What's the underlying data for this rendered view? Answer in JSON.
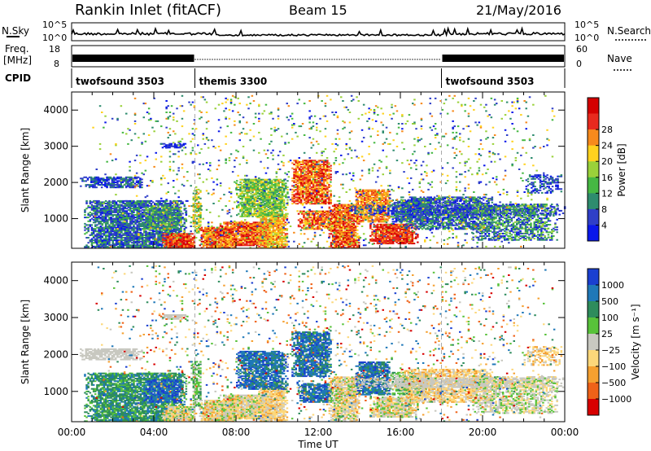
{
  "header": {
    "station": "Rankin Inlet (fitACF)",
    "beam": "Beam 15",
    "date": "21/May/2016"
  },
  "strip_labels": {
    "nsky": "N.Sky",
    "nsearch": "N.Search",
    "freq_top": "Freq.",
    "freq_unit": "[MHz]",
    "nave": "Nave",
    "cpid": "CPID",
    "nsky_ticks": [
      "10^5",
      "10^0"
    ],
    "nsearch_ticks": [
      "10^5",
      "10^0"
    ],
    "freq_ticks": [
      "18",
      "8"
    ],
    "nave_ticks": [
      "60",
      "0"
    ]
  },
  "chart_data": {
    "type": "heatmap",
    "x_unit": "Time UT",
    "xlim": [
      "00:00",
      "24:00"
    ],
    "x_tick_labels": [
      "00:00",
      "04:00",
      "08:00",
      "12:00",
      "16:00",
      "20:00",
      "00:00"
    ],
    "cpid_segments": [
      {
        "name": "twofsound 3503",
        "start_hour": 0,
        "end_hour": 6
      },
      {
        "name": "themis 3300",
        "start_hour": 6,
        "end_hour": 18
      },
      {
        "name": "twofsound 3503",
        "start_hour": 18,
        "end_hour": 24
      }
    ],
    "freq_hours_high": [
      [
        0,
        6
      ],
      [
        18,
        24
      ]
    ],
    "panels": [
      {
        "id": "power",
        "ylabel": "Slant Range [km]",
        "ylim": [
          180,
          4500
        ],
        "y_ticks": [
          "1000",
          "2000",
          "3000",
          "4000"
        ],
        "colorbar_label": "Power [dB]",
        "colorbar_ticks": [
          "4",
          "8",
          "12",
          "16",
          "20",
          "24",
          "28"
        ],
        "colors": [
          "#0a18ea",
          "#2f3fc8",
          "#2e8c6e",
          "#46b843",
          "#9ad13a",
          "#ffd21e",
          "#f78a1c",
          "#e82a1e",
          "#d40000"
        ]
      },
      {
        "id": "velocity",
        "ylabel": "Slant Range [km]",
        "ylim": [
          180,
          4500
        ],
        "y_ticks": [
          "1000",
          "2000",
          "3000",
          "4000"
        ],
        "colorbar_label": "Velocity [m s⁻¹]",
        "colorbar_ticks": [
          "1000",
          "500",
          "100",
          "25",
          "−25",
          "−100",
          "−500",
          "−1000"
        ],
        "colors": [
          "#1a3fd0",
          "#1f78b8",
          "#2e8c5c",
          "#58c23a",
          "#c8c8c0",
          "#fcd77a",
          "#f5a030",
          "#ef6218",
          "#d80000"
        ]
      }
    ],
    "echo_regions": [
      {
        "t": [
          0.6,
          5.6
        ],
        "r": [
          180,
          1500
        ],
        "p": 0.85,
        "pc": [
          0,
          3
        ],
        "vc": [
          1,
          3
        ]
      },
      {
        "t": [
          0.4,
          3.4
        ],
        "r": [
          1850,
          2150
        ],
        "p": 0.75,
        "pc": [
          0,
          2
        ],
        "vc": [
          4,
          4
        ]
      },
      {
        "t": [
          3.5,
          5.3
        ],
        "r": [
          700,
          1300
        ],
        "p": 0.75,
        "pc": [
          1,
          4
        ],
        "vc": [
          0,
          1
        ]
      },
      {
        "t": [
          4.4,
          6.0
        ],
        "r": [
          180,
          600
        ],
        "p": 0.95,
        "pc": [
          6,
          8
        ],
        "vc": [
          3,
          6
        ]
      },
      {
        "t": [
          5.8,
          6.3
        ],
        "r": [
          600,
          1800
        ],
        "p": 0.65,
        "pc": [
          2,
          6
        ],
        "vc": [
          2,
          4
        ]
      },
      {
        "t": [
          6.2,
          8.0
        ],
        "r": [
          180,
          750
        ],
        "p": 0.95,
        "pc": [
          5,
          8
        ],
        "vc": [
          3,
          6
        ]
      },
      {
        "t": [
          7.2,
          9.8
        ],
        "r": [
          250,
          900
        ],
        "p": 0.9,
        "pc": [
          5,
          8
        ],
        "vc": [
          3,
          6
        ]
      },
      {
        "t": [
          9.0,
          10.5
        ],
        "r": [
          180,
          1100
        ],
        "p": 0.85,
        "pc": [
          4,
          7
        ],
        "vc": [
          4,
          6
        ]
      },
      {
        "t": [
          8.0,
          10.5
        ],
        "r": [
          1050,
          2100
        ],
        "p": 0.85,
        "pc": [
          2,
          5
        ],
        "vc": [
          0,
          2
        ]
      },
      {
        "t": [
          10.7,
          12.6
        ],
        "r": [
          1400,
          2600
        ],
        "p": 0.85,
        "pc": [
          5,
          8
        ],
        "vc": [
          0,
          2
        ]
      },
      {
        "t": [
          11.0,
          12.8
        ],
        "r": [
          700,
          1200
        ],
        "p": 0.8,
        "pc": [
          5,
          8
        ],
        "vc": [
          0,
          2
        ]
      },
      {
        "t": [
          12.5,
          14.0
        ],
        "r": [
          180,
          1400
        ],
        "p": 0.85,
        "pc": [
          5,
          8
        ],
        "vc": [
          3,
          6
        ]
      },
      {
        "t": [
          13.8,
          15.5
        ],
        "r": [
          900,
          1800
        ],
        "p": 0.8,
        "pc": [
          5,
          7
        ],
        "vc": [
          0,
          2
        ]
      },
      {
        "t": [
          14.5,
          16.8
        ],
        "r": [
          300,
          850
        ],
        "p": 0.9,
        "pc": [
          6,
          8
        ],
        "vc": [
          3,
          6
        ]
      },
      {
        "t": [
          15.5,
          17.5
        ],
        "r": [
          900,
          1500
        ],
        "p": 0.75,
        "pc": [
          0,
          3
        ],
        "vc": [
          2,
          4
        ]
      },
      {
        "t": [
          16.0,
          20.5
        ],
        "r": [
          700,
          1600
        ],
        "p": 0.7,
        "pc": [
          0,
          3
        ],
        "vc": [
          4,
          6
        ]
      },
      {
        "t": [
          13.5,
          24.0
        ],
        "r": [
          1100,
          1350
        ],
        "p": 0.55,
        "pc": [
          0,
          2
        ],
        "vc": [
          4,
          4
        ]
      },
      {
        "t": [
          19.5,
          23.6
        ],
        "r": [
          400,
          1400
        ],
        "p": 0.6,
        "pc": [
          0,
          4
        ],
        "vc": [
          3,
          5
        ]
      },
      {
        "t": [
          22.0,
          23.8
        ],
        "r": [
          1700,
          2200
        ],
        "p": 0.45,
        "pc": [
          0,
          2
        ],
        "vc": [
          4,
          6
        ]
      },
      {
        "t": [
          4.3,
          5.5
        ],
        "r": [
          2950,
          3080
        ],
        "p": 0.8,
        "pc": [
          0,
          1
        ],
        "vc": [
          4,
          4
        ]
      },
      {
        "t": [
          1.0,
          23.5
        ],
        "r": [
          180,
          4400
        ],
        "p": 0.05,
        "pc": [
          0,
          6
        ],
        "vc": [
          0,
          8
        ]
      }
    ]
  },
  "colors": {
    "axis": "#000000",
    "dashed_marker": "#aaaaaa"
  }
}
